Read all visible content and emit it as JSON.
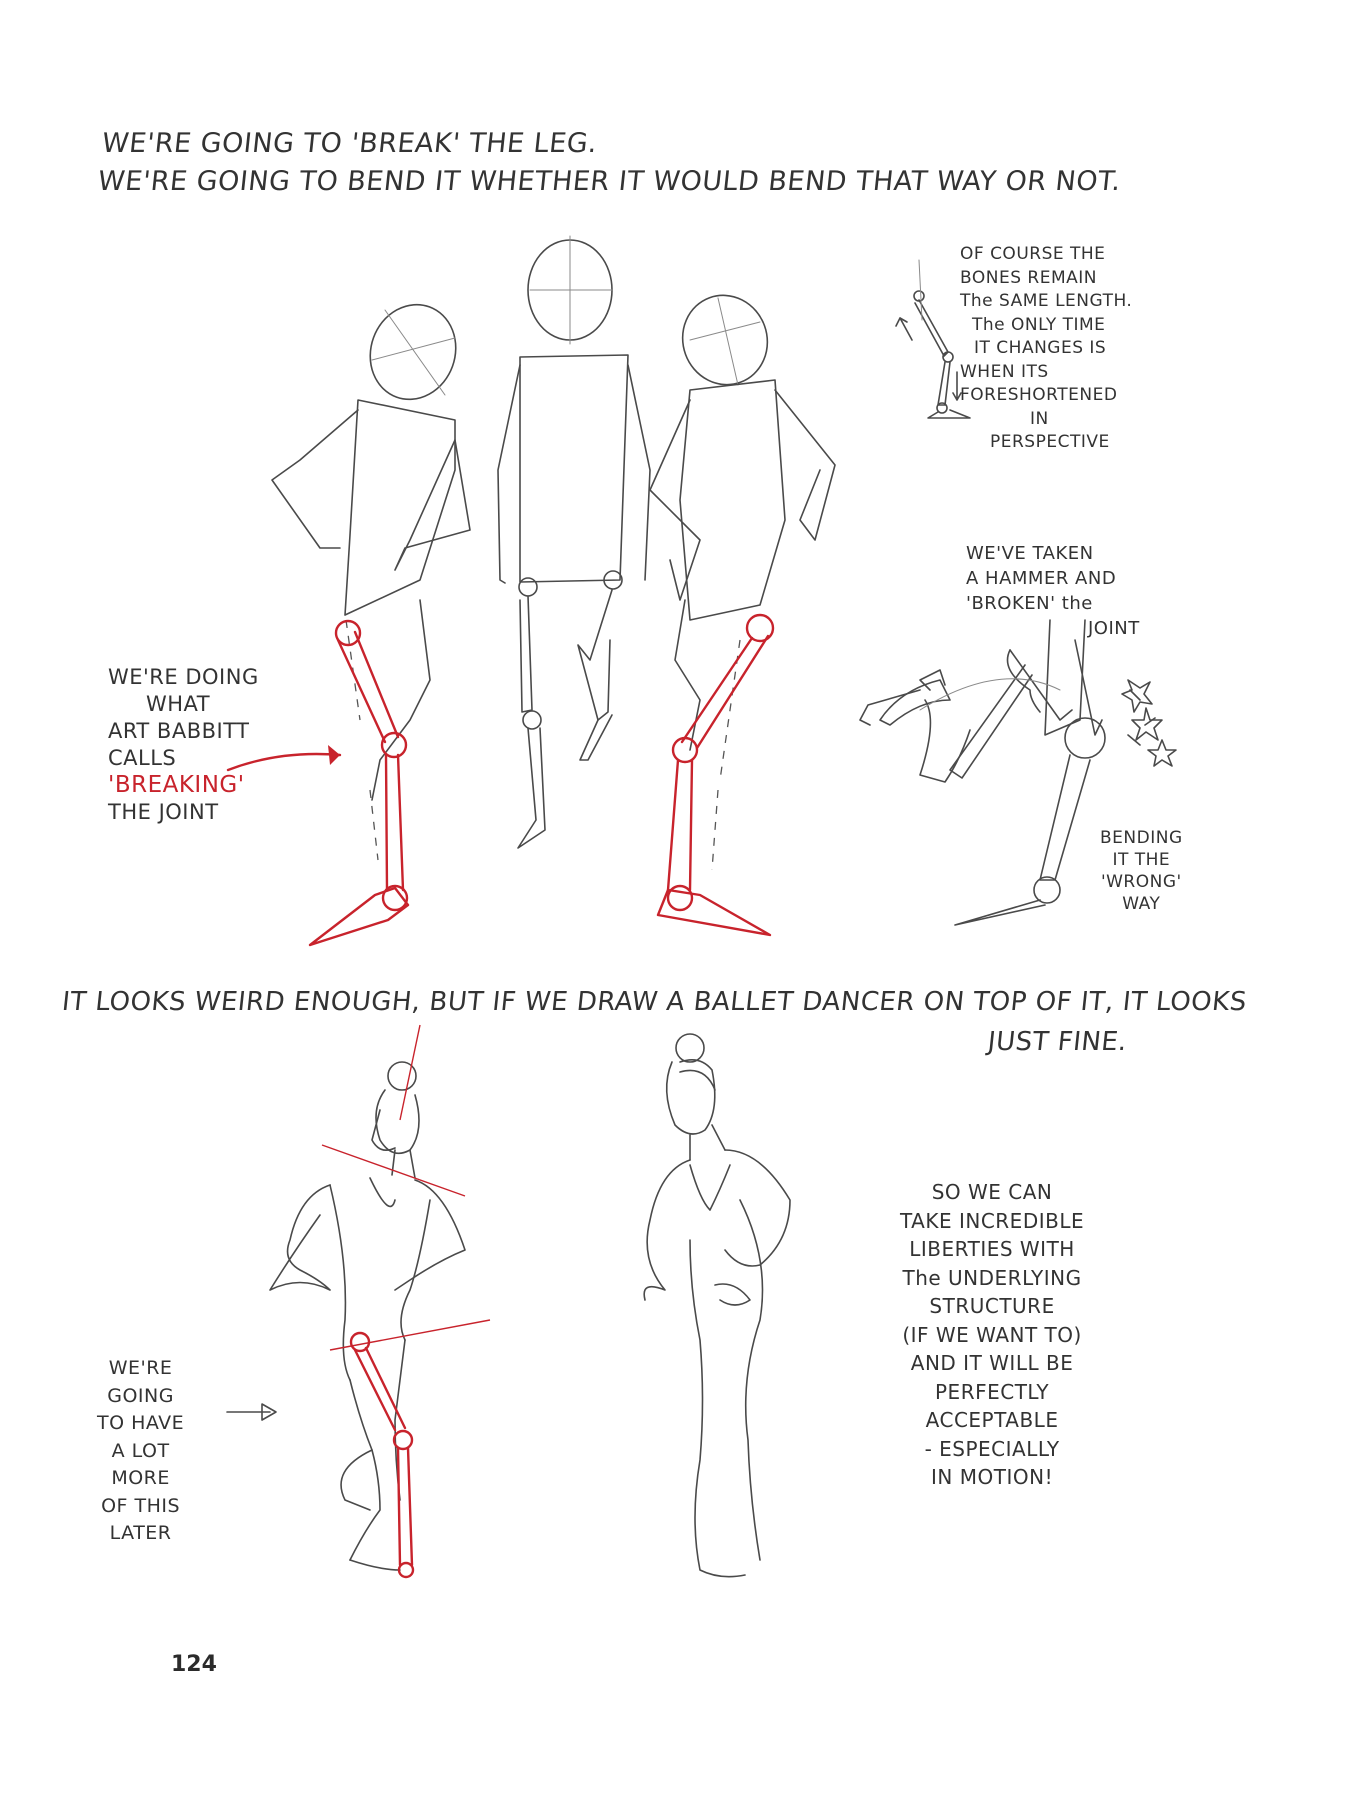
{
  "headline": [
    "WE'RE GOING TO 'BREAK' THE LEG.",
    "WE'RE GOING TO BEND IT WHETHER IT WOULD BEND THAT WAY OR NOT."
  ],
  "note_bones": [
    "OF COURSE THE",
    "BONES REMAIN",
    "The SAME LENGTH.",
    "The ONLY TIME",
    "IT CHANGES IS",
    "WHEN ITS",
    "FORESHORTENED",
    "IN",
    "PERSPECTIVE"
  ],
  "note_hammer": [
    "WE'VE TAKEN",
    "A HAMMER AND",
    "'BROKEN' the",
    "JOINT"
  ],
  "note_breaking": {
    "lines": [
      "WE'RE DOING",
      "WHAT",
      "ART BABBITT",
      "CALLS"
    ],
    "highlight": "'BREAKING'",
    "last": "THE JOINT"
  },
  "note_wrong_way": [
    "BENDING",
    "IT THE",
    "'WRONG'",
    "WAY"
  ],
  "midline": [
    "IT LOOKS WEIRD ENOUGH, BUT IF WE DRAW A BALLET DANCER ON TOP OF IT, IT LOOKS",
    "JUST FINE."
  ],
  "note_liberties": [
    "SO WE CAN",
    "TAKE INCREDIBLE",
    "LIBERTIES WITH",
    "The UNDERLYING",
    "STRUCTURE",
    "(IF WE WANT TO)",
    "AND IT WILL BE",
    "PERFECTLY",
    "ACCEPTABLE",
    "- ESPECIALLY",
    "IN MOTION!"
  ],
  "note_later": [
    "WE'RE",
    "GOING",
    "TO HAVE",
    "A LOT",
    "MORE",
    "OF THIS",
    "LATER"
  ],
  "page_number": "124",
  "colors": {
    "pencil": "#4a4a4a",
    "red_pencil": "#c8232c",
    "paper": "#ffffff"
  }
}
